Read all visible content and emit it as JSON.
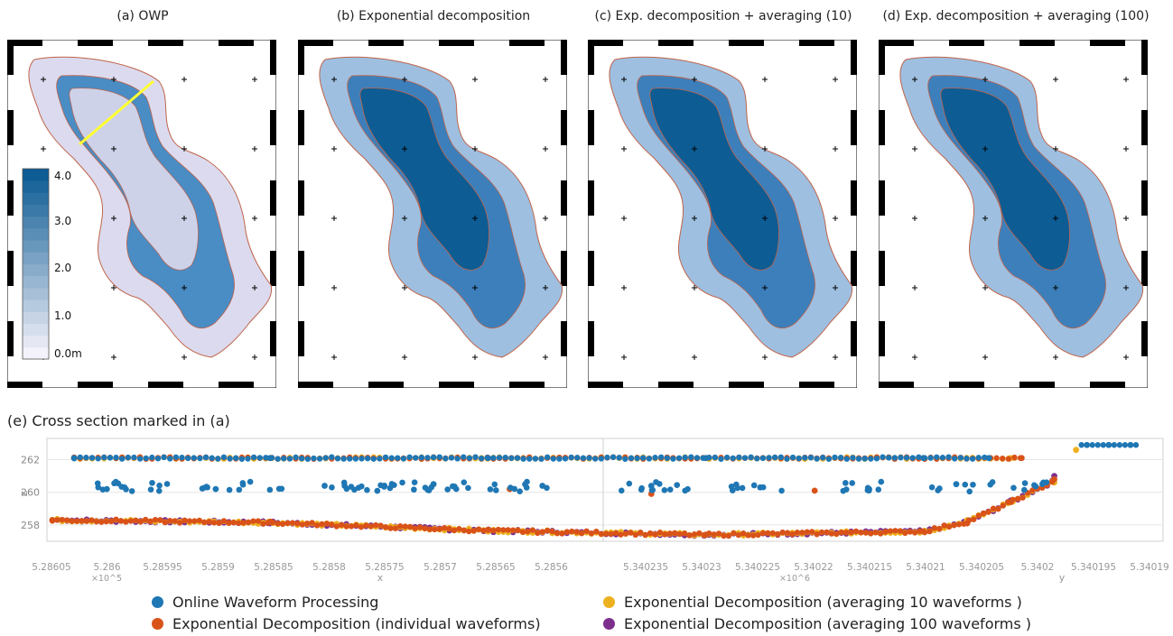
{
  "panels": [
    {
      "title": "(a) OWP"
    },
    {
      "title": "(b) Exponential decomposition"
    },
    {
      "title": "(c) Exp. decomposition + averaging (10)"
    },
    {
      "title": "(d) Exp. decomposition + averaging (100)"
    }
  ],
  "colorbar": {
    "labels": [
      "4.0",
      "3.0",
      "2.0",
      "1.0",
      "0.0m"
    ],
    "low_color": "#f4f2fa",
    "high_color": "#0d5c94"
  },
  "map_colors": {
    "deep": "#0d5c94",
    "mid": "#4a8cc4",
    "shallow": "#dcdaee",
    "contour": "#c0644a",
    "marker_line": "#ffff33"
  },
  "cross_section": {
    "title": "(e) Cross section marked in (a)",
    "ylabel": "z",
    "yticks": [
      "262",
      "260",
      "258"
    ],
    "x_ticks": [
      "5.28605",
      "5.286",
      "5.28595",
      "5.2859",
      "5.28585",
      "5.2858",
      "5.28575",
      "5.2857",
      "5.28565",
      "5.2856"
    ],
    "x_multiplier": "×10^5",
    "x_label": "x",
    "y_ticks": [
      "5.340235",
      "5.34023",
      "5.340225",
      "5.34022",
      "5.340215",
      "5.34021",
      "5.340205",
      "5.3402",
      "5.340195",
      "5.34019"
    ],
    "y_multiplier": "×10^6",
    "y_label": "y"
  },
  "chart_data": {
    "type": "scatter",
    "title": "(e) Cross section marked in (a)",
    "ylabel": "z",
    "ylim": [
      257.0,
      263.3
    ],
    "position_range": [
      0,
      100
    ],
    "series": [
      {
        "name": "Online Waveform Processing",
        "color": "#1f77b4",
        "points": [
          [
            2,
            262.1
          ],
          [
            20,
            262.1
          ],
          [
            40,
            262.1
          ],
          [
            60,
            262.1
          ],
          [
            80,
            262.1
          ],
          [
            86,
            262.1
          ],
          [
            95,
            262.9
          ],
          [
            97,
            262.9
          ],
          [
            99,
            262.9
          ],
          [
            5,
            260.2
          ],
          [
            15,
            260.2
          ],
          [
            25,
            260.4
          ],
          [
            35,
            260.5
          ],
          [
            45,
            260.4
          ],
          [
            55,
            260.4
          ],
          [
            65,
            260.3
          ],
          [
            75,
            260.2
          ],
          [
            83,
            260.5
          ],
          [
            91,
            260.6
          ]
        ]
      },
      {
        "name": "Exponential Decomposition (individual waveforms)",
        "color": "#d95319",
        "points": [
          [
            2,
            262.1
          ],
          [
            20,
            262.1
          ],
          [
            40,
            262.1
          ],
          [
            60,
            262.1
          ],
          [
            80,
            262.1
          ],
          [
            89,
            262.1
          ],
          [
            0,
            258.3
          ],
          [
            20,
            258.2
          ],
          [
            40,
            257.7
          ],
          [
            60,
            257.4
          ],
          [
            80,
            257.6
          ],
          [
            84,
            258.1
          ],
          [
            88,
            259.4
          ],
          [
            92,
            260.8
          ],
          [
            42,
            260.2
          ],
          [
            55,
            259.9
          ],
          [
            70,
            260.1
          ]
        ]
      },
      {
        "name": "Exponential Decomposition (averaging 10 waveforms )",
        "color": "#edb120",
        "points": [
          [
            2,
            262.1
          ],
          [
            20,
            262.1
          ],
          [
            40,
            262.1
          ],
          [
            60,
            262.1
          ],
          [
            80,
            262.1
          ],
          [
            88,
            262.1
          ],
          [
            94,
            262.6
          ],
          [
            0,
            258.3
          ],
          [
            20,
            258.2
          ],
          [
            40,
            257.6
          ],
          [
            60,
            257.4
          ],
          [
            80,
            257.6
          ],
          [
            84,
            258.3
          ],
          [
            88,
            259.4
          ],
          [
            92,
            260.6
          ]
        ]
      },
      {
        "name": "Exponential Decomposition (averaging 100 waveforms )",
        "color": "#7e2f8e",
        "points": [
          [
            0,
            258.3
          ],
          [
            20,
            258.1
          ],
          [
            40,
            257.6
          ],
          [
            60,
            257.4
          ],
          [
            80,
            257.6
          ],
          [
            84,
            258.2
          ],
          [
            88,
            259.5
          ],
          [
            92,
            261.0
          ]
        ]
      }
    ]
  }
}
